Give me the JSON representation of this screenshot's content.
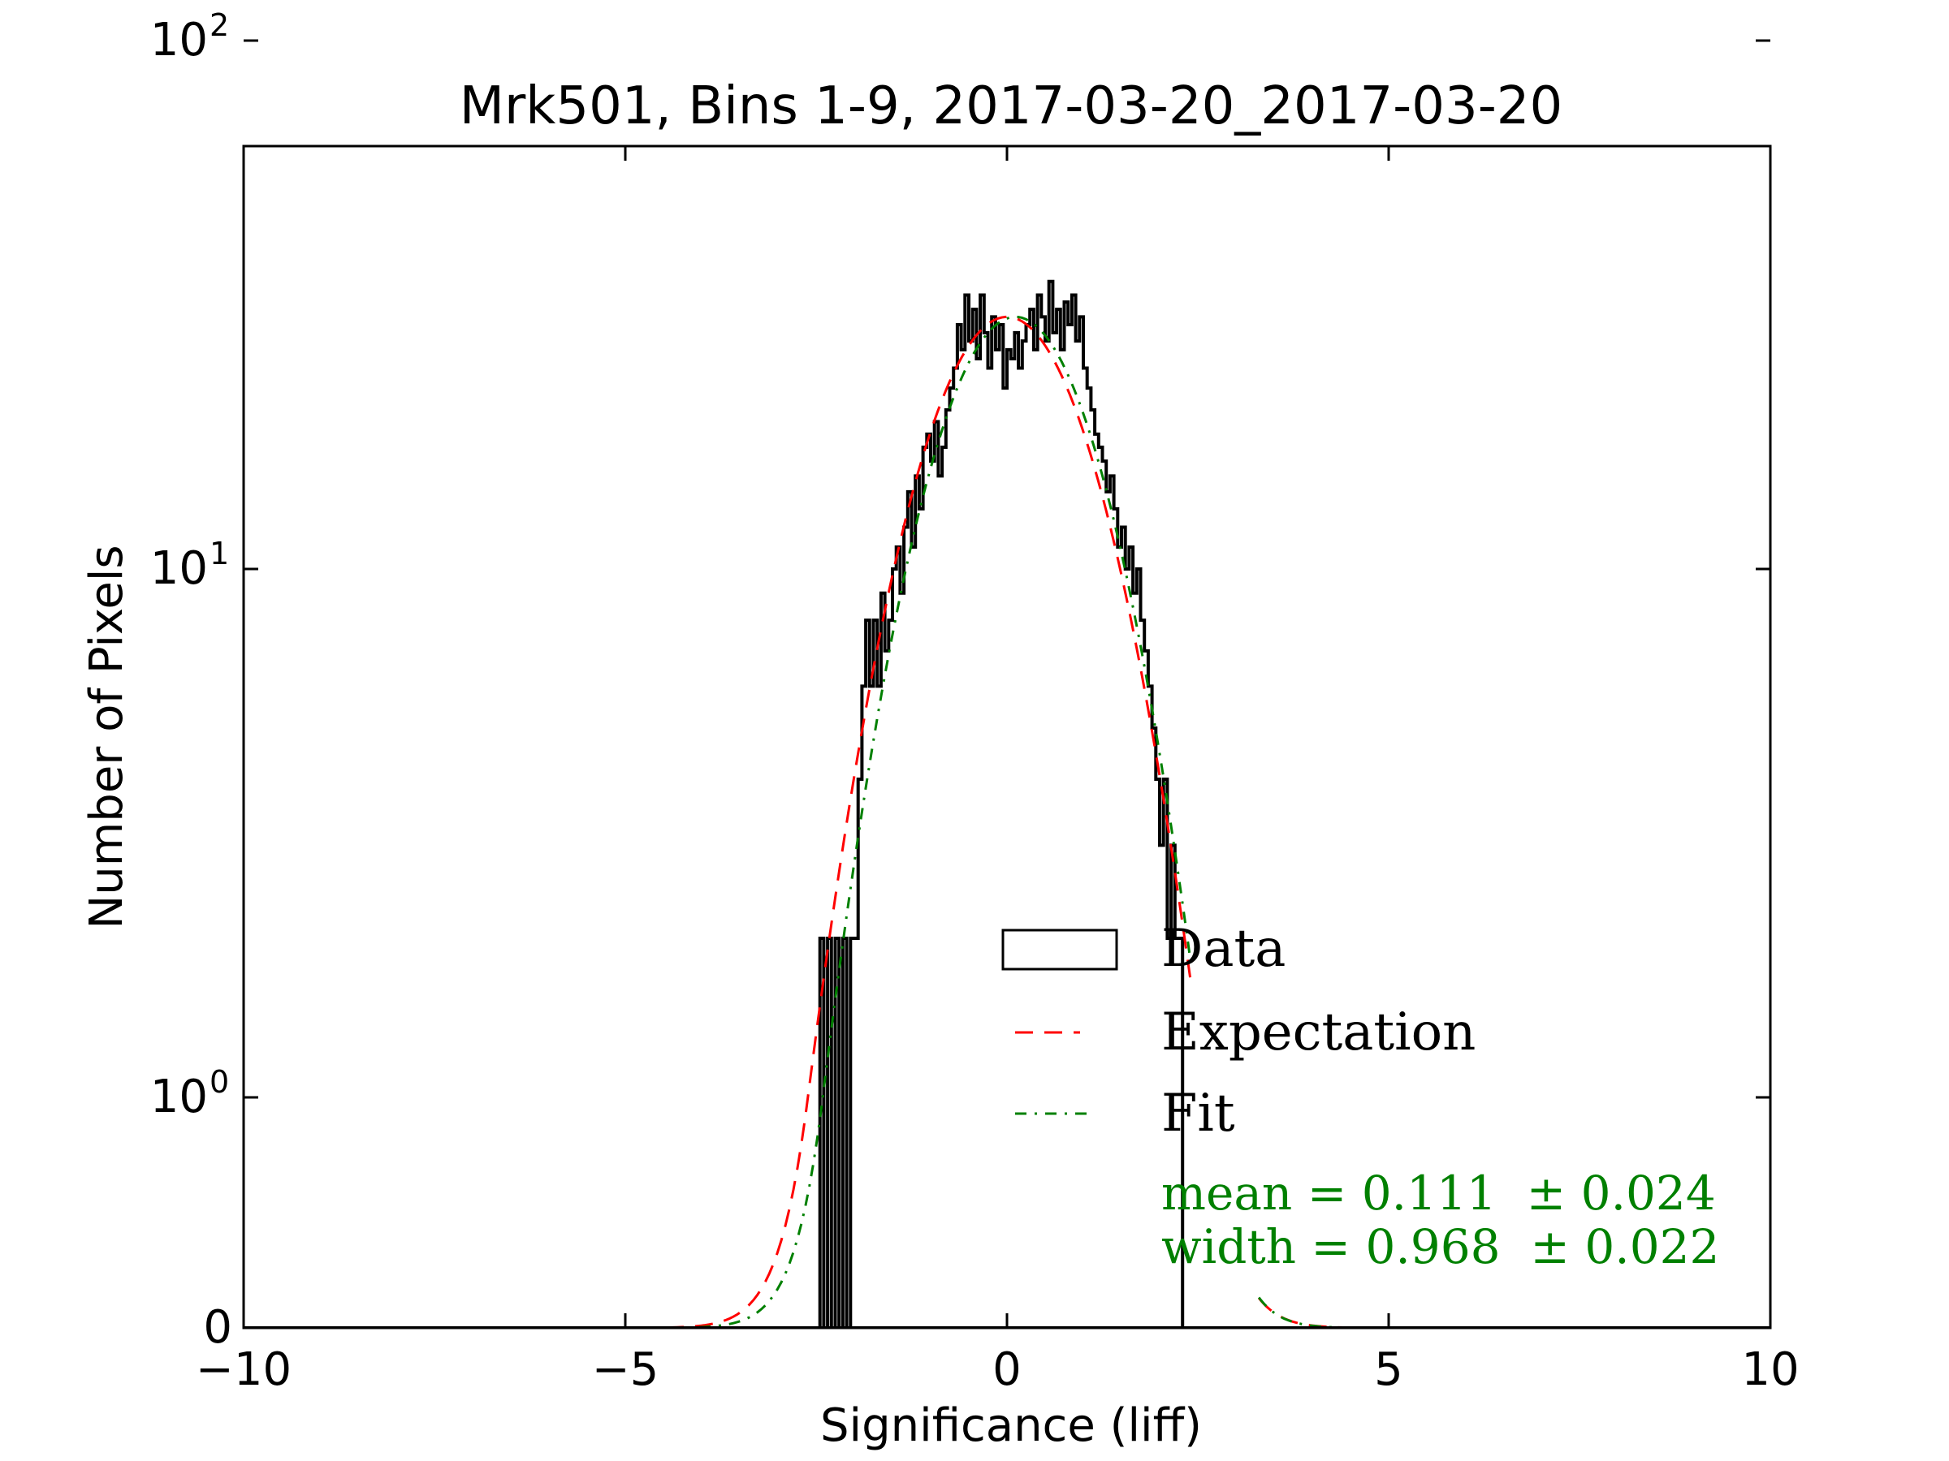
{
  "chart_data": {
    "type": "histogram",
    "title": "Mrk501, Bins 1-9, 2017-03-20_2017-03-20",
    "xlabel": "Significance (liff)",
    "ylabel": "Number of Pixels",
    "xlim": [
      -10,
      10
    ],
    "yscale": "symlog",
    "x_ticks": [
      {
        "value": -10,
        "label": "−10"
      },
      {
        "value": -5,
        "label": "−5"
      },
      {
        "value": 0,
        "label": "0"
      },
      {
        "value": 5,
        "label": "5"
      },
      {
        "value": 10,
        "label": "10"
      }
    ],
    "y_ticks": [
      {
        "value": 0,
        "label": "0"
      },
      {
        "value": 1,
        "label": "10",
        "exp": "0"
      },
      {
        "value": 10,
        "label": "10",
        "exp": "1"
      },
      {
        "value": 100,
        "label": "10",
        "exp": "2"
      }
    ],
    "legend": {
      "placement": "lower-right",
      "entries": [
        {
          "label": "Data",
          "style": "box",
          "color": "#000000"
        },
        {
          "label": "Expectation",
          "style": "dashed",
          "color": "#ff0000"
        },
        {
          "label": "Fit",
          "style": "dashdot",
          "color": "#008000"
        }
      ]
    },
    "annotations": {
      "mean": "mean = 0.111  ± 0.024",
      "width": "width = 0.968  ± 0.022",
      "color": "#008000"
    },
    "series": [
      {
        "name": "Data",
        "kind": "step",
        "color": "#000000",
        "points": [
          [
            -2.45,
            2
          ],
          [
            -2.4,
            0
          ],
          [
            -2.35,
            2
          ],
          [
            -2.3,
            0
          ],
          [
            -2.25,
            2
          ],
          [
            -2.2,
            0
          ],
          [
            -2.15,
            2
          ],
          [
            -2.1,
            0
          ],
          [
            -2.05,
            2
          ],
          [
            -2.0,
            2
          ],
          [
            -1.95,
            4
          ],
          [
            -1.9,
            6
          ],
          [
            -1.85,
            8
          ],
          [
            -1.8,
            6
          ],
          [
            -1.75,
            8
          ],
          [
            -1.7,
            6
          ],
          [
            -1.65,
            9
          ],
          [
            -1.6,
            7
          ],
          [
            -1.55,
            8
          ],
          [
            -1.5,
            10
          ],
          [
            -1.45,
            11
          ],
          [
            -1.4,
            9
          ],
          [
            -1.35,
            12
          ],
          [
            -1.3,
            14
          ],
          [
            -1.25,
            11
          ],
          [
            -1.2,
            15
          ],
          [
            -1.15,
            13
          ],
          [
            -1.1,
            17
          ],
          [
            -1.05,
            18
          ],
          [
            -1.0,
            16
          ],
          [
            -0.95,
            19
          ],
          [
            -0.9,
            15
          ],
          [
            -0.85,
            17
          ],
          [
            -0.8,
            20
          ],
          [
            -0.75,
            22
          ],
          [
            -0.7,
            24
          ],
          [
            -0.65,
            29
          ],
          [
            -0.6,
            26
          ],
          [
            -0.55,
            33
          ],
          [
            -0.5,
            27
          ],
          [
            -0.45,
            31
          ],
          [
            -0.4,
            25
          ],
          [
            -0.35,
            33
          ],
          [
            -0.3,
            28
          ],
          [
            -0.25,
            24
          ],
          [
            -0.2,
            30
          ],
          [
            -0.15,
            26
          ],
          [
            -0.1,
            29
          ],
          [
            -0.05,
            22
          ],
          [
            0.0,
            26
          ],
          [
            0.05,
            25
          ],
          [
            0.1,
            28
          ],
          [
            0.15,
            24
          ],
          [
            0.2,
            27
          ],
          [
            0.25,
            29
          ],
          [
            0.3,
            31
          ],
          [
            0.35,
            26
          ],
          [
            0.4,
            33
          ],
          [
            0.45,
            30
          ],
          [
            0.5,
            27
          ],
          [
            0.55,
            35
          ],
          [
            0.6,
            28
          ],
          [
            0.65,
            31
          ],
          [
            0.7,
            26
          ],
          [
            0.75,
            32
          ],
          [
            0.8,
            29
          ],
          [
            0.85,
            33
          ],
          [
            0.9,
            27
          ],
          [
            0.95,
            30
          ],
          [
            1.0,
            24
          ],
          [
            1.05,
            22
          ],
          [
            1.1,
            20
          ],
          [
            1.15,
            18
          ],
          [
            1.2,
            17
          ],
          [
            1.25,
            16
          ],
          [
            1.3,
            14
          ],
          [
            1.35,
            15
          ],
          [
            1.4,
            13
          ],
          [
            1.45,
            11
          ],
          [
            1.5,
            12
          ],
          [
            1.55,
            10
          ],
          [
            1.6,
            11
          ],
          [
            1.65,
            9
          ],
          [
            1.7,
            10
          ],
          [
            1.75,
            8
          ],
          [
            1.8,
            7
          ],
          [
            1.85,
            6
          ],
          [
            1.9,
            5
          ],
          [
            1.95,
            4
          ],
          [
            2.0,
            3
          ],
          [
            2.05,
            4
          ],
          [
            2.1,
            2
          ],
          [
            2.15,
            3
          ],
          [
            2.2,
            2
          ],
          [
            2.25,
            2
          ]
        ]
      },
      {
        "name": "Expectation",
        "kind": "gaussian",
        "color": "#ff0000",
        "amplitude": 30,
        "mean": 0,
        "sigma": 1,
        "x_range": [
          -6,
          6
        ],
        "visible_ranges": [
          [
            -6,
            2.4
          ],
          [
            3.3,
            6
          ]
        ]
      },
      {
        "name": "Fit",
        "kind": "gaussian",
        "color": "#008000",
        "amplitude": 30,
        "mean": 0.111,
        "sigma": 0.968,
        "x_range": [
          -6,
          6
        ],
        "visible_ranges": [
          [
            -6,
            2.4
          ],
          [
            3.3,
            6
          ]
        ]
      }
    ]
  }
}
